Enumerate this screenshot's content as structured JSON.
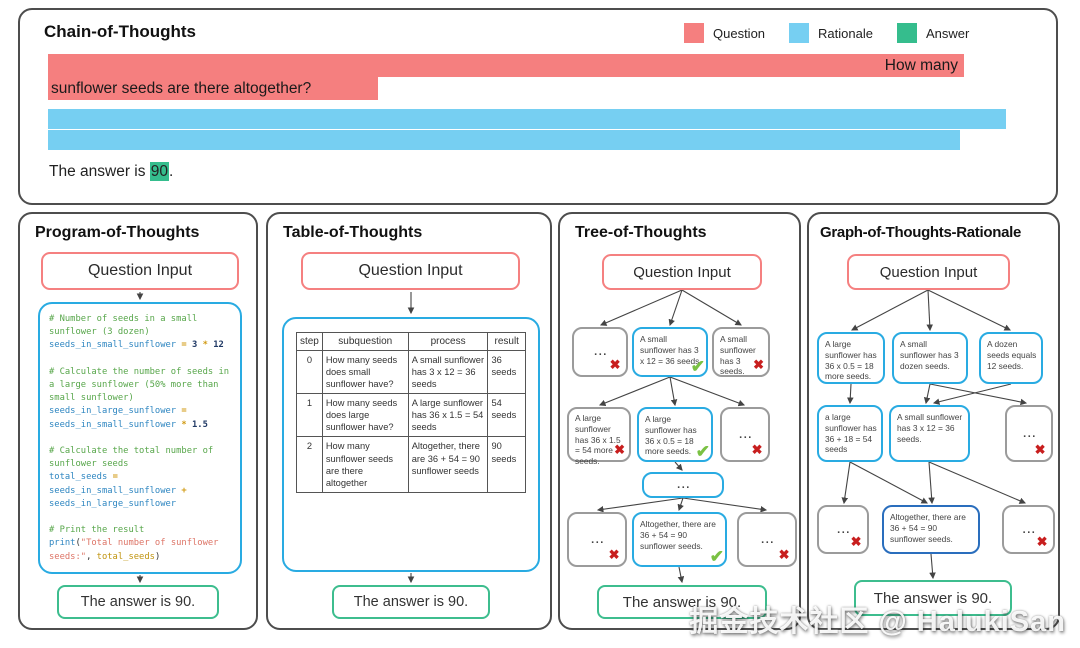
{
  "chain": {
    "title": "Chain-of-Thoughts",
    "question_tail_line1": "How many",
    "question_tail_line2": "sunflower seeds are there altogether?",
    "answer_prefix": "The answer is ",
    "answer_value": "90",
    "answer_suffix": "."
  },
  "legend": {
    "items": [
      {
        "label": "Question",
        "color": "#f57f7f"
      },
      {
        "label": "Rationale",
        "color": "#76cff2"
      },
      {
        "label": "Answer",
        "color": "#35bd8d"
      }
    ]
  },
  "program": {
    "title": "Program-of-Thoughts",
    "question_input": "Question Input",
    "code_lines": [
      [
        [
          "c",
          "# Number of seeds in a small"
        ]
      ],
      [
        [
          "c",
          "sunflower (3 dozen)"
        ]
      ],
      [
        [
          "v",
          "seeds_in_small_sunflower"
        ],
        [
          "p",
          " "
        ],
        [
          "o",
          "="
        ],
        [
          "p",
          " "
        ],
        [
          "n",
          "3"
        ],
        [
          "p",
          " "
        ],
        [
          "o",
          "*"
        ],
        [
          "p",
          " "
        ],
        [
          "n",
          "12"
        ]
      ],
      [],
      [
        [
          "c",
          "# Calculate the number of seeds in"
        ]
      ],
      [
        [
          "c",
          "a large sunflower (50% more than"
        ]
      ],
      [
        [
          "c",
          "small sunflower)"
        ]
      ],
      [
        [
          "v",
          "seeds_in_large_sunflower"
        ],
        [
          "p",
          " "
        ],
        [
          "o",
          "="
        ]
      ],
      [
        [
          "v",
          "seeds_in_small_sunflower"
        ],
        [
          "p",
          " "
        ],
        [
          "o",
          "*"
        ],
        [
          "p",
          " "
        ],
        [
          "n",
          "1.5"
        ]
      ],
      [],
      [
        [
          "c",
          "# Calculate the total number of"
        ]
      ],
      [
        [
          "c",
          "sunflower seeds"
        ]
      ],
      [
        [
          "v",
          "total_seeds"
        ],
        [
          "p",
          " "
        ],
        [
          "o",
          "="
        ]
      ],
      [
        [
          "v",
          "seeds_in_small_sunflower"
        ],
        [
          "p",
          " "
        ],
        [
          "o",
          "+"
        ]
      ],
      [
        [
          "v",
          "seeds_in_large_sunflower"
        ]
      ],
      [],
      [
        [
          "c",
          "# Print the result"
        ]
      ],
      [
        [
          "k",
          "print"
        ],
        [
          "p",
          "("
        ],
        [
          "s",
          "\"Total number of sunflower"
        ]
      ],
      [
        [
          "s",
          "seeds:\""
        ],
        [
          "p",
          ", "
        ],
        [
          "g",
          "total_seeds"
        ],
        [
          "p",
          ")"
        ]
      ]
    ],
    "answer": "The answer is 90."
  },
  "table_panel": {
    "title": "Table-of-Thoughts",
    "question_input": "Question Input",
    "headers": [
      "step",
      "subquestion",
      "process",
      "result"
    ],
    "rows": [
      [
        "0",
        "How many seeds does small sunflower have?",
        "A small sunflower has 3 x 12 = 36 seeds",
        "36 seeds"
      ],
      [
        "1",
        "How many seeds does large sunflower have?",
        "A large sunflower has 36 x 1.5 = 54 seeds",
        "54 seeds"
      ],
      [
        "2",
        "How many sunflower seeds are there altogether",
        "Altogether, there are 36 + 54 = 90 sunflower seeds",
        "90 seeds"
      ]
    ],
    "answer": "The answer is 90."
  },
  "tree": {
    "title": "Tree-of-Thoughts",
    "question_input": "Question Input",
    "level1": [
      "...",
      "A small sunflower has 3 x 12 = 36 seeds.",
      "A small sunflower has 3 seeds."
    ],
    "level2": [
      "A large sunflower has 36 x 1.5 = 54 more seeds.",
      "A large sunflower has 36 x 0.5 = 18 more seeds.",
      "..."
    ],
    "mid_dots": "...",
    "level3": [
      "...",
      "Altogether, there are 36 + 54 = 90 sunflower seeds.",
      "..."
    ],
    "answer": "The answer is 90."
  },
  "graph": {
    "title": "Graph-of-Thoughts-Rationale",
    "question_input": "Question Input",
    "level1": [
      "A large sunflower has 36 x 0.5 = 18 more seeds.",
      "A small sunflower has 3 dozen seeds.",
      "A dozen seeds equals 12 seeds."
    ],
    "level2": [
      "a large sunflower has 36 + 18 = 54 seeds",
      "A small sunflower has 3 x 12 = 36 seeds.",
      "..."
    ],
    "level3": [
      "...",
      "Altogether, there are 36 + 54 = 90 sunflower seeds.",
      "..."
    ],
    "answer": "The answer is 90."
  },
  "glyphs": {
    "check": "✔",
    "cross": "✖"
  },
  "colors": {
    "question": "#f57f7f",
    "rationale": "#76cff2",
    "answer": "#35bd8d",
    "node_blue": "#29abe2",
    "node_navy": "#2a6ebd",
    "node_gray": "#9b9b9b",
    "cross_red": "#c81e1e",
    "check_green": "#7ac143"
  },
  "watermark": {
    "text": "掘金技术社区 @ HalukiSan"
  }
}
